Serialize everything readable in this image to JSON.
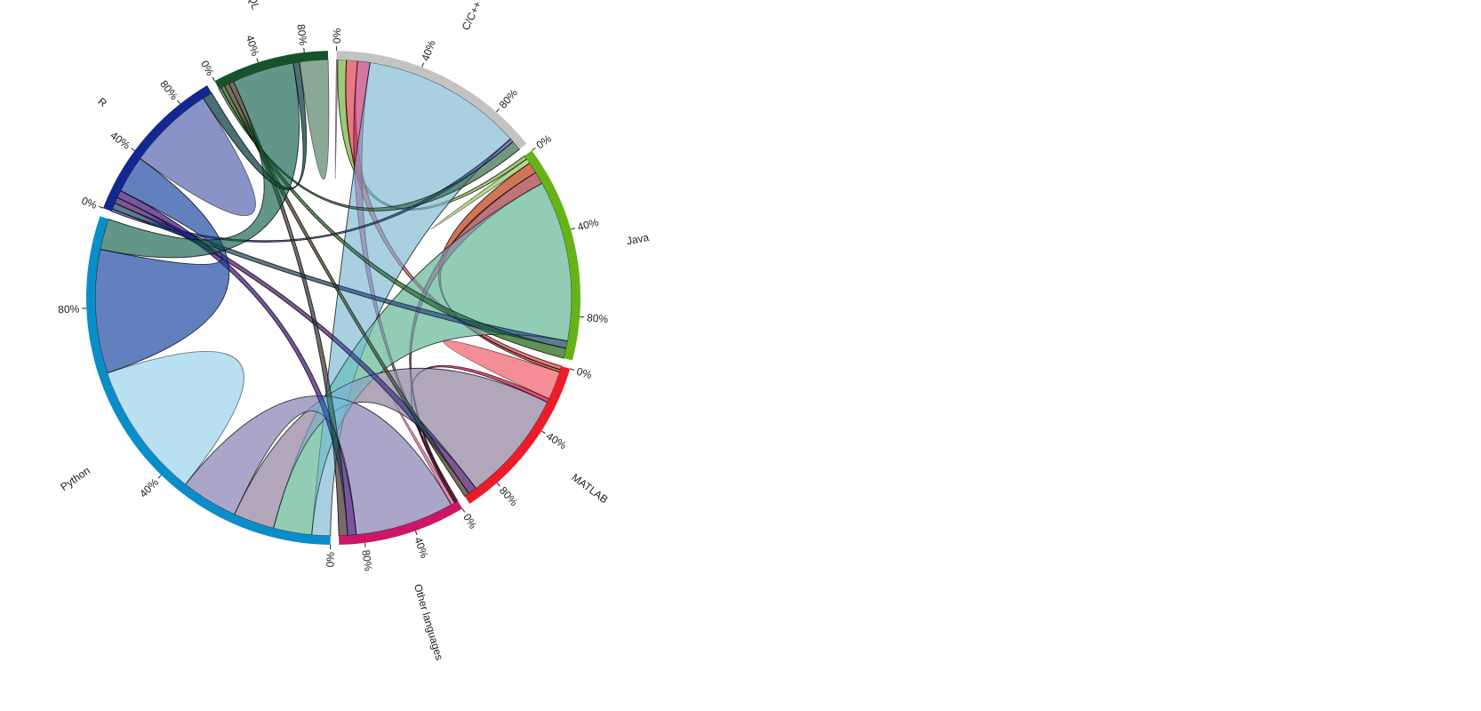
{
  "chart_data": {
    "type": "chord",
    "title": "",
    "tick_labels": [
      "0%",
      "40%",
      "80%"
    ],
    "groups": [
      {
        "name": "C/C++",
        "color": "#c3c3c3"
      },
      {
        "name": "Java",
        "color": "#66b318"
      },
      {
        "name": "MATLAB",
        "color": "#ec1c2a"
      },
      {
        "name": "Other languages",
        "color": "#cc1768"
      },
      {
        "name": "Python",
        "color": "#0a8ec8"
      },
      {
        "name": "R",
        "color": "#13288f"
      },
      {
        "name": "SQL",
        "color": "#16532a"
      }
    ],
    "matrix": [
      [
        0.1,
        0.7,
        0.9,
        1.0,
        13.0,
        0.3,
        0.8
      ],
      [
        0.3,
        0.4,
        0.9,
        1.0,
        13.0,
        0.6,
        0.8
      ],
      [
        0.3,
        0.2,
        2.3,
        0.3,
        9.0,
        0.7,
        0.4
      ],
      [
        0.1,
        0.1,
        0.1,
        0.3,
        8.0,
        0.7,
        0.7
      ],
      [
        1.5,
        3.1,
        3.3,
        4.6,
        11.0,
        10.0,
        2.5
      ],
      [
        0.2,
        0.5,
        0.5,
        0.6,
        3.0,
        7.0,
        0.8
      ],
      [
        0.2,
        0.3,
        0.4,
        0.4,
        5.0,
        0.5,
        2.3
      ]
    ]
  }
}
